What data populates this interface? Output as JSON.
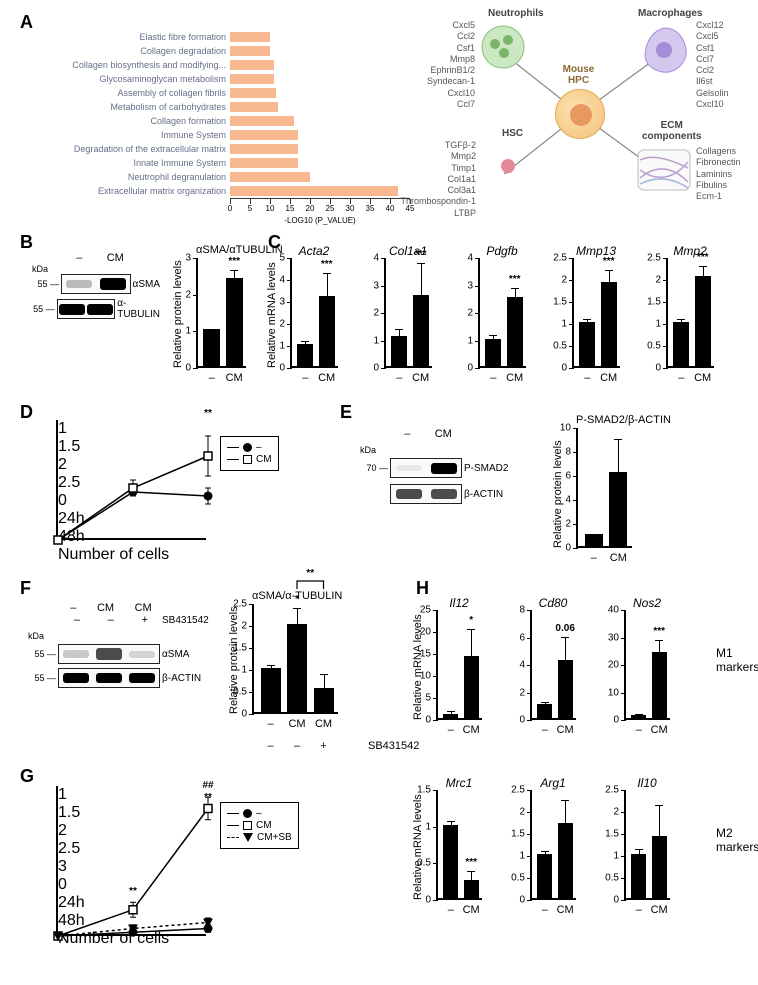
{
  "panels": {
    "A": "A",
    "B": "B",
    "C": "C",
    "D": "D",
    "E": "E",
    "F": "F",
    "G": "G",
    "H": "H"
  },
  "panelA_bar": {
    "type": "horizontal_bar",
    "color": "#f7b88f",
    "label_color": "#646f88",
    "xlabel": "-LOG10 (P_VALUE)",
    "xmax": 45,
    "xtick_step": 5,
    "rows": [
      {
        "label": "Elastic fibre formation",
        "value": 10
      },
      {
        "label": "Collagen degradation",
        "value": 10
      },
      {
        "label": "Collagen biosynthesis and modifying...",
        "value": 11
      },
      {
        "label": "Glycosaminoglycan metabolism",
        "value": 11
      },
      {
        "label": "Assembly of collagen fibrils",
        "value": 11.5
      },
      {
        "label": "Metabolism of carbohydrates",
        "value": 12
      },
      {
        "label": "Collagen formation",
        "value": 16
      },
      {
        "label": "Immune System",
        "value": 17
      },
      {
        "label": "Degradation of the extracellular matrix",
        "value": 17
      },
      {
        "label": "Innate Immune System",
        "value": 17
      },
      {
        "label": "Neutrophil degranulation",
        "value": 20
      },
      {
        "label": "Extracellular matrix organization",
        "value": 42
      }
    ]
  },
  "panelA_diagram": {
    "center": "Mouse\nHPC",
    "center_color": "#f5c27a",
    "quads": {
      "neutrophils": {
        "title": "Neutrophils",
        "genes": [
          "Cxcl5",
          "Ccl2",
          "Csf1",
          "Mmp8",
          "EphrinB1/2",
          "Syndecan-1",
          "Cxcl10",
          "Ccl7"
        ],
        "color": "#a6d9a0"
      },
      "macrophages": {
        "title": "Macrophages",
        "genes": [
          "Cxcl12",
          "Cxcl5",
          "Csf1",
          "Ccl7",
          "Ccl2",
          "Il6st",
          "Gelsolin",
          "Cxcl10"
        ],
        "color": "#b6a4e6"
      },
      "hsc": {
        "title": "HSC",
        "genes": [
          "TGFβ-2",
          "Mmp2",
          "Timp1",
          "Col1a1",
          "Col3a1",
          "Thrombospondin-1",
          "LTBP"
        ],
        "color": "#f5aab5"
      },
      "ecm": {
        "title": "ECM\ncomponents",
        "genes": [
          "Collagens",
          "Fibronectin",
          "Laminins",
          "Fibulins",
          "Ecm-1"
        ],
        "color": "#d9c3e0"
      }
    }
  },
  "panelB": {
    "blot": {
      "kDa": "kDa",
      "mark": "55 —",
      "lanes": [
        "–",
        "CM"
      ],
      "bands": [
        {
          "l": "αSMA"
        },
        {
          "l": "α-TUBULIN"
        }
      ]
    },
    "chart": {
      "title": "αSMA/αTUBULIN",
      "ylabel": "Relative protein levels",
      "ymax": 3,
      "ytick": 1,
      "bars": [
        {
          "x": "–",
          "v": 1,
          "err": 0
        },
        {
          "x": "CM",
          "v": 2.4,
          "err": 0.18
        }
      ],
      "sig": "***"
    }
  },
  "panelC": {
    "ylabel": "Relative mRNA levels",
    "charts": [
      {
        "title": "Acta2",
        "ymax": 5,
        "ytick": 1,
        "bars": [
          {
            "x": "–",
            "v": 1,
            "err": 0.1
          },
          {
            "x": "CM",
            "v": 3.2,
            "err": 1.0
          }
        ],
        "sig": "***"
      },
      {
        "title": "Col1a1",
        "ymax": 4,
        "ytick": 1,
        "bars": [
          {
            "x": "–",
            "v": 1.1,
            "err": 0.2
          },
          {
            "x": "CM",
            "v": 2.6,
            "err": 1.1
          }
        ],
        "sig": "***"
      },
      {
        "title": "Pdgfb",
        "ymax": 4,
        "ytick": 1,
        "bars": [
          {
            "x": "–",
            "v": 1,
            "err": 0.1
          },
          {
            "x": "CM",
            "v": 2.5,
            "err": 0.3
          }
        ],
        "sig": "***"
      },
      {
        "title": "Mmp13",
        "ymax": 2.5,
        "ytick": 0.5,
        "bars": [
          {
            "x": "–",
            "v": 1,
            "err": 0.05
          },
          {
            "x": "CM",
            "v": 1.9,
            "err": 0.25
          }
        ],
        "sig": "***"
      },
      {
        "title": "Mmp2",
        "ymax": 2.5,
        "ytick": 0.5,
        "bars": [
          {
            "x": "–",
            "v": 1,
            "err": 0.05
          },
          {
            "x": "CM",
            "v": 2.05,
            "err": 0.2
          }
        ],
        "sig": "***"
      }
    ]
  },
  "panelD": {
    "ylabel": "Number of cells",
    "ymin": 1.0,
    "ymax": 2.5,
    "ytick": 0.25,
    "x": [
      "0",
      "24h",
      "48h"
    ],
    "series": [
      {
        "name": "–",
        "style": "filled",
        "y": [
          1.0,
          1.6,
          1.55
        ],
        "err": [
          0,
          0.05,
          0.1
        ]
      },
      {
        "name": "CM",
        "style": "open",
        "y": [
          1.0,
          1.65,
          2.05
        ],
        "err": [
          0,
          0.1,
          0.25
        ]
      }
    ],
    "sig_48h": "**"
  },
  "panelE": {
    "blot": {
      "kDa": "kDa",
      "mark": "70 —",
      "lanes": [
        "–",
        "CM"
      ],
      "bands": [
        {
          "l": "P-SMAD2"
        },
        {
          "l": "β-ACTIN"
        }
      ]
    },
    "chart": {
      "title": "P-SMAD2/β-ACTIN",
      "ylabel": "Relative protein levels",
      "ymax": 10,
      "ytick": 2,
      "bars": [
        {
          "x": "–",
          "v": 1,
          "err": 0
        },
        {
          "x": "CM",
          "v": 6.2,
          "err": 2.6
        }
      ]
    }
  },
  "panelF": {
    "blot": {
      "kDa": "kDa",
      "mark": "55 —",
      "lanes": [
        "–",
        "CM",
        "CM"
      ],
      "row2": [
        "–",
        "–",
        "+"
      ],
      "drug": "SB431542",
      "bands": [
        {
          "l": "αSMA"
        },
        {
          "l": "β-ACTIN"
        }
      ]
    },
    "chart": {
      "title": "αSMA/α-TUBULIN",
      "ylabel": "Relative protein levels",
      "ymax": 2.5,
      "ytick": 0.5,
      "bars": [
        {
          "x": "–",
          "v": 1,
          "err": 0.05
        },
        {
          "x": "CM",
          "v": 2.0,
          "err": 0.35
        },
        {
          "x": "CM",
          "v": 0.55,
          "err": 0.3
        }
      ],
      "row2": [
        "–",
        "–",
        "+"
      ],
      "drug": "SB431542",
      "sig_top": "*",
      "sig_bracket": "**"
    }
  },
  "panelG": {
    "ylabel": "Number of cells",
    "ymin": 1,
    "ymax": 3,
    "ytick": 0.25,
    "x": [
      "0",
      "24h",
      "48h"
    ],
    "series": [
      {
        "name": "–",
        "style": "filled",
        "y": [
          1.0,
          1.05,
          1.1
        ],
        "err": [
          0,
          0.02,
          0.05
        ]
      },
      {
        "name": "CM",
        "style": "open",
        "y": [
          1.0,
          1.35,
          2.7
        ],
        "err": [
          0,
          0.1,
          0.15
        ]
      },
      {
        "name": "CM+SB",
        "style": "tri",
        "y": [
          1.0,
          1.1,
          1.18
        ],
        "err": [
          0,
          0.05,
          0.06
        ],
        "dashed": true
      }
    ],
    "sig_24h": "**",
    "sig_48h_top": "##",
    "sig_48h_bottom": "**"
  },
  "panelH": {
    "ylabel": "Relative mRNA levels",
    "row1_label": "M1\nmarkers",
    "row2_label": "M2\nmarkers",
    "row1": [
      {
        "title": "Il12",
        "ymax": 25,
        "ytick": 5,
        "bars": [
          {
            "x": "–",
            "v": 1,
            "err": 0.3
          },
          {
            "x": "CM",
            "v": 14,
            "err": 6
          }
        ],
        "sig": "*"
      },
      {
        "title": "Cd80",
        "ymax": 8,
        "ytick": 2,
        "bars": [
          {
            "x": "–",
            "v": 1,
            "err": 0.1
          },
          {
            "x": "CM",
            "v": 4.2,
            "err": 1.6
          }
        ],
        "sig": "0.06"
      },
      {
        "title": "Nos2",
        "ymax": 40,
        "ytick": 10,
        "bars": [
          {
            "x": "–",
            "v": 1,
            "err": 0.2
          },
          {
            "x": "CM",
            "v": 24,
            "err": 4
          }
        ],
        "sig": "***"
      }
    ],
    "row2": [
      {
        "title": "Mrc1",
        "ymax": 1.5,
        "ytick": 0.5,
        "bars": [
          {
            "x": "–",
            "v": 1,
            "err": 0.03
          },
          {
            "x": "CM",
            "v": 0.25,
            "err": 0.1
          }
        ],
        "sig": "***"
      },
      {
        "title": "Arg1",
        "ymax": 2.5,
        "ytick": 0.5,
        "bars": [
          {
            "x": "–",
            "v": 1,
            "err": 0.05
          },
          {
            "x": "CM",
            "v": 1.7,
            "err": 0.5
          }
        ]
      },
      {
        "title": "Il10",
        "ymax": 2.5,
        "ytick": 0.5,
        "bars": [
          {
            "x": "–",
            "v": 1,
            "err": 0.1
          },
          {
            "x": "CM",
            "v": 1.4,
            "err": 0.7
          }
        ]
      }
    ]
  }
}
